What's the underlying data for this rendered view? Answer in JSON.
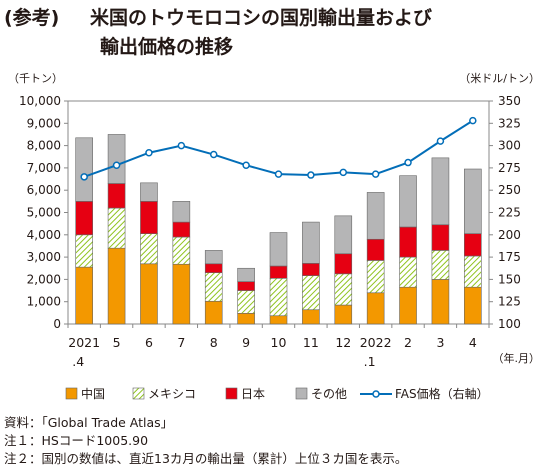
{
  "title": {
    "tag": "(参考)",
    "line1": "米国のトウモロコシの国別輸出量および",
    "line2": "輸出価格の推移"
  },
  "notes": [
    "資料：「Global Trade Atlas」",
    "注１：HSコード1005.90",
    "注２：国別の数値は、直近13カ月の輸出量（累計）上位３カ国を表示。"
  ],
  "chart_data": {
    "type": "bar",
    "stacked": true,
    "categories": [
      "2021\n.4",
      "5",
      "6",
      "7",
      "8",
      "9",
      "10",
      "11",
      "12",
      "2022\n.1",
      "2",
      "3",
      "4"
    ],
    "series": [
      {
        "name": "中国",
        "color": "#f39800",
        "pattern": "solid",
        "values": [
          2550,
          3400,
          2700,
          2680,
          1020,
          480,
          370,
          640,
          850,
          1400,
          1650,
          2000,
          1650
        ]
      },
      {
        "name": "メキシコ",
        "color": "#8fc31f",
        "pattern": "hatch",
        "values": [
          1450,
          1800,
          1350,
          1220,
          1280,
          1020,
          1680,
          1530,
          1400,
          1450,
          1350,
          1300,
          1400
        ]
      },
      {
        "name": "日本",
        "color": "#e60012",
        "pattern": "solid",
        "values": [
          1500,
          1100,
          1450,
          670,
          400,
          400,
          550,
          550,
          900,
          950,
          1350,
          1150,
          1000
        ]
      },
      {
        "name": "その他",
        "color": "#b5b5b6",
        "pattern": "solid",
        "values": [
          2850,
          2200,
          830,
          930,
          600,
          600,
          1500,
          1850,
          1700,
          2100,
          2300,
          3000,
          2900
        ]
      }
    ],
    "line": {
      "name": "FAS価格（右軸）",
      "color": "#036eb8",
      "values": [
        265,
        278,
        292,
        300,
        290,
        278,
        268,
        267,
        270,
        268,
        281,
        305,
        328
      ]
    },
    "y_left": {
      "unit": "（千トン）",
      "min": 0,
      "max": 10000,
      "step": 1000
    },
    "y_right": {
      "unit": "（米ドル/トン）",
      "min": 100,
      "max": 350,
      "step": 25
    },
    "x_unit": "（年.月）",
    "grid": false,
    "legend_position": "bottom"
  }
}
